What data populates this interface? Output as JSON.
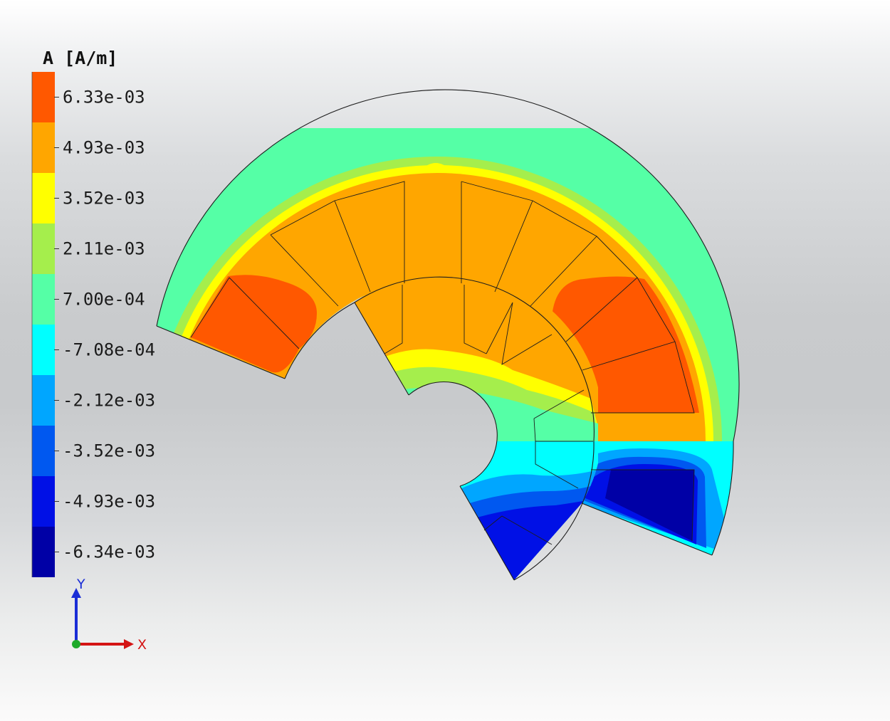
{
  "legend": {
    "title": "A [A/m]",
    "levels": [
      {
        "label": "6.33e-03",
        "color": "#ff5800"
      },
      {
        "label": "4.93e-03",
        "color": "#ffa600"
      },
      {
        "label": "3.52e-03",
        "color": "#ffff00"
      },
      {
        "label": "2.11e-03",
        "color": "#a5ee4c"
      },
      {
        "label": "7.00e-04",
        "color": "#55ffa6"
      },
      {
        "label": "-7.08e-04",
        "color": "#00ffff"
      },
      {
        "label": "-2.12e-03",
        "color": "#00a6ff"
      },
      {
        "label": "-3.52e-03",
        "color": "#0058f0"
      },
      {
        "label": "-4.93e-03",
        "color": "#0010e6"
      },
      {
        "label": "-6.34e-03",
        "color": "#0000a6"
      }
    ]
  },
  "axes": {
    "y_label": "Y",
    "x_label": "X",
    "y_color": "#1a2dd6",
    "x_color": "#d41414",
    "origin_color": "#1faa2a"
  }
}
